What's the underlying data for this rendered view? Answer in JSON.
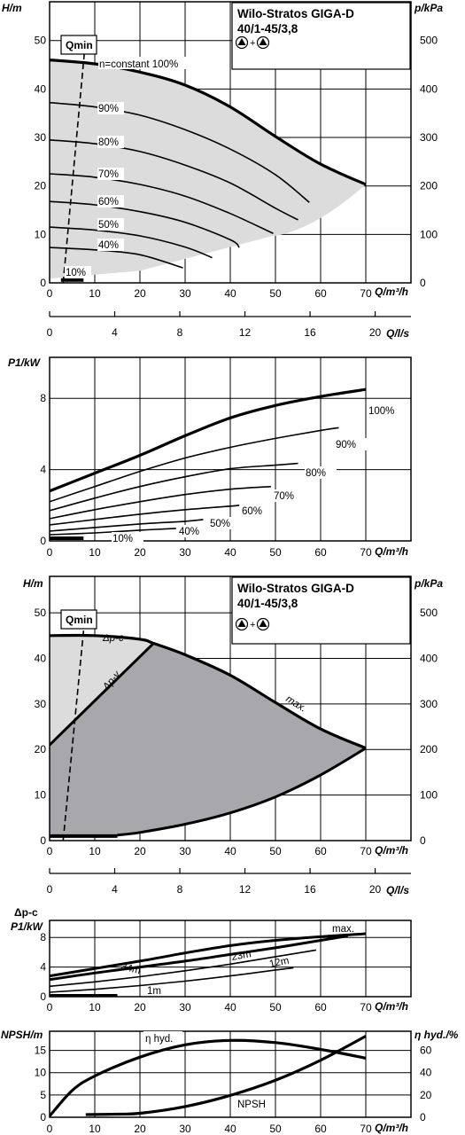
{
  "chart_data": [
    {
      "id": "h1",
      "type": "line",
      "title": "Wilo-Stratos GIGA-D",
      "subtitle": "40/1-45/3,8",
      "ylabel": "H/m",
      "y2label": "p/kPa",
      "xlabel": "Q/m³/h",
      "xlim": [
        0,
        80
      ],
      "ylim": [
        0,
        58
      ],
      "y2lim": [
        0,
        580
      ],
      "xticks": [
        "0",
        "10",
        "20",
        "30",
        "40",
        "50",
        "60",
        "70"
      ],
      "yticks": [
        "0",
        "10",
        "20",
        "30",
        "40",
        "50"
      ],
      "y2ticks": [
        "0",
        "100",
        "200",
        "300",
        "400",
        "500"
      ],
      "qmin_label": "Qmin",
      "grid": true,
      "series": [
        {
          "name": "n=constant 100%",
          "width": "thick",
          "x": [
            0,
            10,
            20,
            30,
            40,
            50,
            60,
            70
          ],
          "y": [
            46,
            45.2,
            43.5,
            40.8,
            36.3,
            30.2,
            24.5,
            20.3
          ]
        },
        {
          "name": "90%",
          "x": [
            0,
            10,
            20,
            30,
            40,
            50,
            57.5
          ],
          "y": [
            37.2,
            36.3,
            34.6,
            31.6,
            27.6,
            22.3,
            16.6
          ]
        },
        {
          "name": "80%",
          "x": [
            0,
            10,
            20,
            30,
            40,
            50,
            55
          ],
          "y": [
            29.5,
            28.7,
            27.1,
            24.3,
            20.6,
            15.4,
            13
          ]
        },
        {
          "name": "70%",
          "x": [
            0,
            10,
            20,
            30,
            40,
            49.5
          ],
          "y": [
            22.5,
            21.8,
            20.3,
            17.9,
            14.3,
            10.2
          ]
        },
        {
          "name": "60%",
          "x": [
            0,
            10,
            20,
            30,
            40,
            42
          ],
          "y": [
            16.8,
            16.1,
            14.7,
            12.5,
            8.9,
            7.3
          ]
        },
        {
          "name": "50%",
          "x": [
            0,
            10,
            20,
            30,
            36
          ],
          "y": [
            11.5,
            10.9,
            9.7,
            7.4,
            5.2
          ]
        },
        {
          "name": "40%",
          "x": [
            0,
            10,
            20,
            29.5
          ],
          "y": [
            7.3,
            6.8,
            5.8,
            3.1
          ]
        },
        {
          "name": "10%",
          "x": [
            2.5,
            7.5
          ],
          "y": [
            0.6,
            0.6
          ]
        }
      ],
      "qmin_line": {
        "x": [
          3,
          8
        ],
        "y": [
          0,
          50.5
        ]
      }
    },
    {
      "id": "qls1",
      "type": "axis",
      "xlabel": "Q/l/s",
      "xlim": [
        0,
        22.2
      ],
      "xticks": [
        "0",
        "4",
        "8",
        "12",
        "16",
        "20"
      ]
    },
    {
      "id": "p1",
      "type": "line",
      "ylabel": "P1/kW",
      "xlabel": "Q/m³/h",
      "xlim": [
        0,
        80
      ],
      "ylim": [
        0,
        10.3
      ],
      "xticks": [
        "0",
        "10",
        "20",
        "30",
        "40",
        "50",
        "60",
        "70"
      ],
      "yticks": [
        "0",
        "4",
        "8"
      ],
      "grid": true,
      "series": [
        {
          "name": "100%",
          "width": "thick",
          "x": [
            0,
            10,
            20,
            30,
            40,
            50,
            60,
            70
          ],
          "y": [
            2.8,
            3.8,
            4.8,
            5.9,
            6.9,
            7.6,
            8.1,
            8.5
          ]
        },
        {
          "name": "90%",
          "x": [
            0,
            10,
            20,
            30,
            40,
            50,
            60,
            64
          ],
          "y": [
            2.2,
            3.05,
            3.9,
            4.65,
            5.25,
            5.75,
            6.2,
            6.35
          ]
        },
        {
          "name": "80%",
          "x": [
            0,
            10,
            20,
            30,
            40,
            50,
            55
          ],
          "y": [
            1.7,
            2.4,
            3.05,
            3.6,
            4.05,
            4.25,
            4.35
          ]
        },
        {
          "name": "70%",
          "x": [
            0,
            10,
            20,
            30,
            40,
            49
          ],
          "y": [
            1.25,
            1.75,
            2.2,
            2.6,
            2.9,
            3.05
          ]
        },
        {
          "name": "60%",
          "x": [
            0,
            10,
            20,
            30,
            40,
            42
          ],
          "y": [
            0.9,
            1.2,
            1.5,
            1.75,
            1.95,
            2.0
          ]
        },
        {
          "name": "50%",
          "x": [
            0,
            10,
            20,
            30,
            34
          ],
          "y": [
            0.55,
            0.75,
            0.95,
            1.1,
            1.2
          ]
        },
        {
          "name": "40%",
          "x": [
            0,
            10,
            20,
            28
          ],
          "y": [
            0.35,
            0.45,
            0.6,
            0.7
          ]
        },
        {
          "name": "10%",
          "width": "thick",
          "x": [
            0,
            7.5
          ],
          "y": [
            0.15,
            0.15
          ]
        }
      ]
    },
    {
      "id": "h2",
      "type": "area",
      "title": "Wilo-Stratos GIGA-D",
      "subtitle": "40/1-45/3,8",
      "ylabel": "H/m",
      "y2label": "p/kPa",
      "xlabel": "Q/m³/h",
      "xlim": [
        0,
        80
      ],
      "ylim": [
        0,
        58
      ],
      "y2lim": [
        0,
        580
      ],
      "xticks": [
        "0",
        "10",
        "20",
        "30",
        "40",
        "50",
        "60",
        "70"
      ],
      "yticks": [
        "0",
        "10",
        "20",
        "30",
        "40",
        "50"
      ],
      "y2ticks": [
        "0",
        "100",
        "200",
        "300",
        "400",
        "500"
      ],
      "qmin_label": "Qmin",
      "labels": [
        "Δp-c",
        "Δp-v",
        "max."
      ],
      "grid": true,
      "max_curve": {
        "x": [
          0,
          10,
          20,
          23,
          30,
          40,
          50,
          60,
          70
        ],
        "y": [
          45,
          45,
          44.2,
          43.3,
          40.8,
          36.3,
          30.3,
          24.5,
          20.3
        ]
      },
      "dpv_line": {
        "x": [
          0,
          23
        ],
        "y": [
          21,
          43.3
        ]
      },
      "min_curve": {
        "x": [
          15,
          20,
          30,
          40,
          50,
          60,
          70
        ],
        "y": [
          1.2,
          1.8,
          3.6,
          6.1,
          9.6,
          14.4,
          20.3
        ]
      },
      "min_base": {
        "x": [
          0,
          15
        ],
        "y": [
          1,
          1
        ]
      },
      "qmin_line": {
        "x": [
          3,
          8
        ],
        "y": [
          0,
          51
        ]
      }
    },
    {
      "id": "qls2",
      "type": "axis",
      "xlabel": "Q/l/s",
      "xlim": [
        0,
        22.2
      ],
      "xticks": [
        "0",
        "4",
        "8",
        "12",
        "16",
        "20"
      ]
    },
    {
      "id": "p2",
      "type": "line",
      "ylabel": "P1/kW",
      "ylabel_top": "Δp-c",
      "xlabel": "Q/m³/h",
      "xlim": [
        0,
        80
      ],
      "ylim": [
        0,
        10.3
      ],
      "xticks": [
        "0",
        "10",
        "20",
        "30",
        "40",
        "50",
        "60",
        "70"
      ],
      "yticks": [
        "0",
        "4",
        "8"
      ],
      "grid": true,
      "series": [
        {
          "name": "max.",
          "width": "thick",
          "x": [
            0,
            10,
            20,
            30,
            40,
            50,
            60,
            70
          ],
          "y": [
            2.8,
            3.8,
            4.8,
            5.9,
            6.9,
            7.6,
            8.1,
            8.5
          ]
        },
        {
          "name": "34m",
          "width": "thick",
          "x": [
            0,
            10,
            20,
            30,
            40,
            50,
            60,
            66
          ],
          "y": [
            2.3,
            3.2,
            4.0,
            4.8,
            5.7,
            6.6,
            7.6,
            8.2
          ]
        },
        {
          "name": "23m",
          "x": [
            0,
            10,
            20,
            30,
            40,
            50,
            59
          ],
          "y": [
            1.4,
            2.0,
            2.7,
            3.5,
            4.4,
            5.4,
            6.3
          ]
        },
        {
          "name": "12m",
          "x": [
            0,
            10,
            20,
            30,
            40,
            50,
            54
          ],
          "y": [
            0.6,
            1.0,
            1.5,
            2.1,
            2.8,
            3.6,
            3.9
          ]
        },
        {
          "name": "1m",
          "width": "thick",
          "x": [
            0,
            15
          ],
          "y": [
            0.12,
            0.12
          ]
        }
      ]
    },
    {
      "id": "npsh",
      "type": "line",
      "ylabel": "NPSH/m",
      "y2label": "η hyd./%",
      "xlabel": "Q/m³/h",
      "xlim": [
        0,
        80
      ],
      "ylim": [
        0,
        19.3
      ],
      "y2lim": [
        0,
        77.2
      ],
      "xticks": [
        "0",
        "10",
        "20",
        "30",
        "40",
        "50",
        "60",
        "70"
      ],
      "yticks": [
        "0",
        "5",
        "10",
        "15"
      ],
      "y2ticks": [
        "0",
        "20",
        "40",
        "60"
      ],
      "grid": true,
      "series": [
        {
          "name": "η hyd.",
          "axis": "right",
          "x": [
            0,
            5,
            10,
            20,
            30,
            40,
            50,
            60,
            70
          ],
          "y": [
            1,
            24,
            37,
            54,
            65,
            69,
            67,
            61,
            53
          ]
        },
        {
          "name": "NPSH",
          "axis": "left",
          "x": [
            8,
            15,
            20,
            30,
            40,
            50,
            60,
            70
          ],
          "y": [
            0.6,
            0.7,
            0.9,
            2.4,
            4.9,
            8.3,
            12.8,
            18.2
          ]
        }
      ]
    }
  ]
}
